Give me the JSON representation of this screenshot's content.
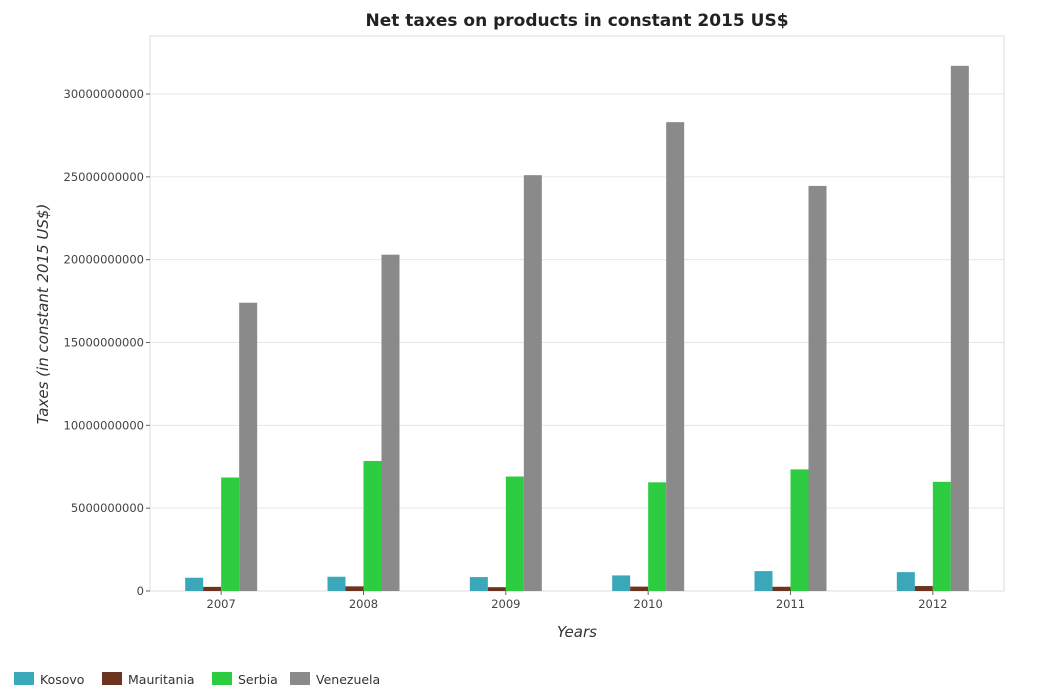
{
  "chart_data": {
    "type": "bar",
    "title": "Net taxes on products in constant 2015 US$",
    "xlabel": "Years",
    "ylabel": "Taxes (in constant 2015 US$)",
    "categories": [
      "2007",
      "2008",
      "2009",
      "2010",
      "2011",
      "2012"
    ],
    "ylim": [
      0,
      33500000000
    ],
    "yticks": [
      0,
      5000000000,
      10000000000,
      15000000000,
      20000000000,
      25000000000,
      30000000000
    ],
    "ytick_labels": [
      "0",
      "5000000000",
      "10000000000",
      "15000000000",
      "20000000000",
      "25000000000",
      "30000000000"
    ],
    "grid": true,
    "legend_position": "bottom-left",
    "series": [
      {
        "name": "Kosovo",
        "color": "#3aa8b9",
        "values": [
          800000000,
          860000000,
          840000000,
          940000000,
          1200000000,
          1140000000
        ]
      },
      {
        "name": "Mauritania",
        "color": "#6b3320",
        "values": [
          250000000,
          280000000,
          230000000,
          265000000,
          255000000,
          300000000
        ]
      },
      {
        "name": "Serbia",
        "color": "#2ecc40",
        "values": [
          6850000000,
          7850000000,
          6910000000,
          6560000000,
          7340000000,
          6590000000
        ]
      },
      {
        "name": "Venezuela",
        "color": "#8a8a8a",
        "values": [
          17400000000,
          20300000000,
          25100000000,
          28300000000,
          24450000000,
          31700000000
        ]
      }
    ]
  }
}
